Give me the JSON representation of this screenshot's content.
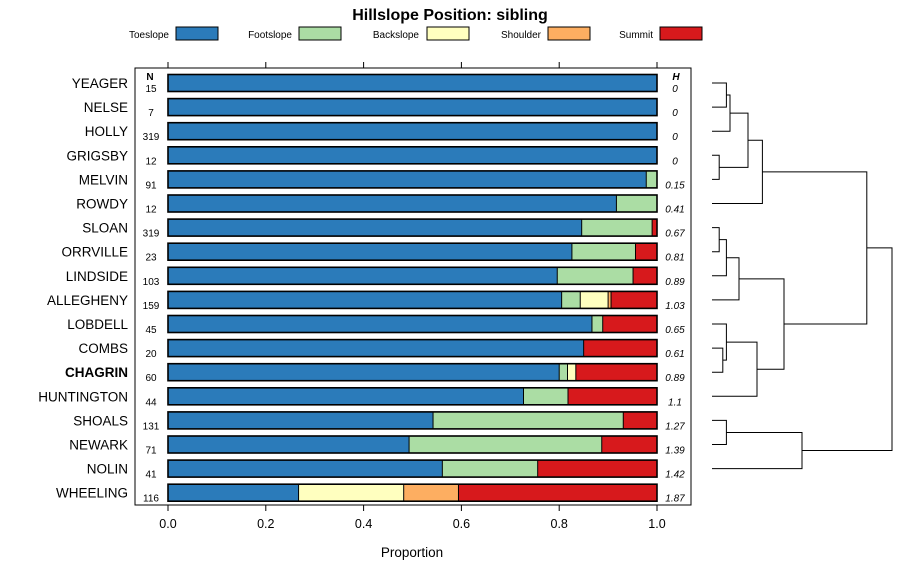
{
  "chart_data": {
    "type": "bar",
    "orientation": "horizontal",
    "stacked": true,
    "title": "Hillslope Position: sibling",
    "xlabel": "Proportion",
    "ylabel": "",
    "xlim": [
      0,
      1
    ],
    "xticks": [
      "0.0",
      "0.2",
      "0.4",
      "0.6",
      "0.8",
      "1.0"
    ],
    "legend_position": "top",
    "n_header": "N",
    "h_header": "H",
    "highlight": "CHAGRIN",
    "categories": [
      "YEAGER",
      "NELSE",
      "HOLLY",
      "GRIGSBY",
      "MELVIN",
      "ROWDY",
      "SLOAN",
      "ORRVILLE",
      "LINDSIDE",
      "ALLEGHENY",
      "LOBDELL",
      "COMBS",
      "CHAGRIN",
      "HUNTINGTON",
      "SHOALS",
      "NEWARK",
      "NOLIN",
      "WHEELING"
    ],
    "n": [
      "15",
      "7",
      "319",
      "12",
      "91",
      "12",
      "319",
      "23",
      "103",
      "159",
      "45",
      "20",
      "60",
      "44",
      "131",
      "71",
      "41",
      "116"
    ],
    "h": [
      "0",
      "0",
      "0",
      "0",
      "0.15",
      "0.41",
      "0.67",
      "0.81",
      "0.89",
      "1.03",
      "0.65",
      "0.61",
      "0.89",
      "1.1",
      "1.27",
      "1.39",
      "1.42",
      "1.87"
    ],
    "series": [
      {
        "name": "Toeslope",
        "color": "#2b7bba",
        "values": [
          1.0,
          1.0,
          1.0,
          1.0,
          0.978,
          0.917,
          0.846,
          0.826,
          0.796,
          0.805,
          0.867,
          0.85,
          0.8,
          0.727,
          0.542,
          0.493,
          0.561,
          0.267
        ]
      },
      {
        "name": "Footslope",
        "color": "#abdda4",
        "values": [
          0,
          0,
          0,
          0,
          0.022,
          0.083,
          0.144,
          0.13,
          0.155,
          0.038,
          0.022,
          0,
          0.017,
          0.091,
          0.389,
          0.394,
          0.195,
          0
        ]
      },
      {
        "name": "Backslope",
        "color": "#ffffbf",
        "values": [
          0,
          0,
          0,
          0,
          0,
          0,
          0,
          0,
          0,
          0.057,
          0,
          0,
          0.017,
          0,
          0,
          0,
          0,
          0.215
        ]
      },
      {
        "name": "Shoulder",
        "color": "#fdae61",
        "values": [
          0,
          0,
          0,
          0,
          0,
          0,
          0,
          0,
          0,
          0.006,
          0,
          0,
          0,
          0,
          0,
          0,
          0,
          0.112
        ]
      },
      {
        "name": "Summit",
        "color": "#d7191c",
        "values": [
          0,
          0,
          0,
          0,
          0,
          0,
          0.01,
          0.044,
          0.049,
          0.094,
          0.111,
          0.15,
          0.166,
          0.182,
          0.069,
          0.113,
          0.244,
          0.406
        ]
      }
    ],
    "dendrogram": {
      "leaves": [
        "YEAGER",
        "NELSE",
        "HOLLY",
        "GRIGSBY",
        "MELVIN",
        "ROWDY",
        "SLOAN",
        "ORRVILLE",
        "LINDSIDE",
        "ALLEGHENY",
        "LOBDELL",
        "COMBS",
        "CHAGRIN",
        "HUNTINGTON",
        "SHOALS",
        "NEWARK",
        "NOLIN",
        "WHEELING"
      ],
      "merges": [
        {
          "left": "YEAGER",
          "right": "NELSE",
          "height": 0.08
        },
        {
          "left": 1,
          "right": "HOLLY",
          "height": 0.1
        },
        {
          "left": "GRIGSBY",
          "right": "MELVIN",
          "height": 0.04
        },
        {
          "left": 2,
          "right": 3,
          "height": 0.2
        },
        {
          "left": 4,
          "right": "ROWDY",
          "height": 0.28
        },
        {
          "left": "SLOAN",
          "right": "ORRVILLE",
          "height": 0.04
        },
        {
          "left": 6,
          "right": "LINDSIDE",
          "height": 0.08
        },
        {
          "left": 7,
          "right": "ALLEGHENY",
          "height": 0.15
        },
        {
          "left": "COMBS",
          "right": "CHAGRIN",
          "height": 0.06
        },
        {
          "left": "LOBDELL",
          "right": 9,
          "height": 0.08
        },
        {
          "left": 10,
          "right": "HUNTINGTON",
          "height": 0.25
        },
        {
          "left": 8,
          "right": 11,
          "height": 0.4
        },
        {
          "left": 5,
          "right": 12,
          "height": 0.86
        },
        {
          "left": "SHOALS",
          "right": "NEWARK",
          "height": 0.08
        },
        {
          "left": 14,
          "right": "NOLIN",
          "height": 0.5
        },
        {
          "left": 13,
          "right": 15,
          "height": 1.0
        }
      ]
    }
  }
}
